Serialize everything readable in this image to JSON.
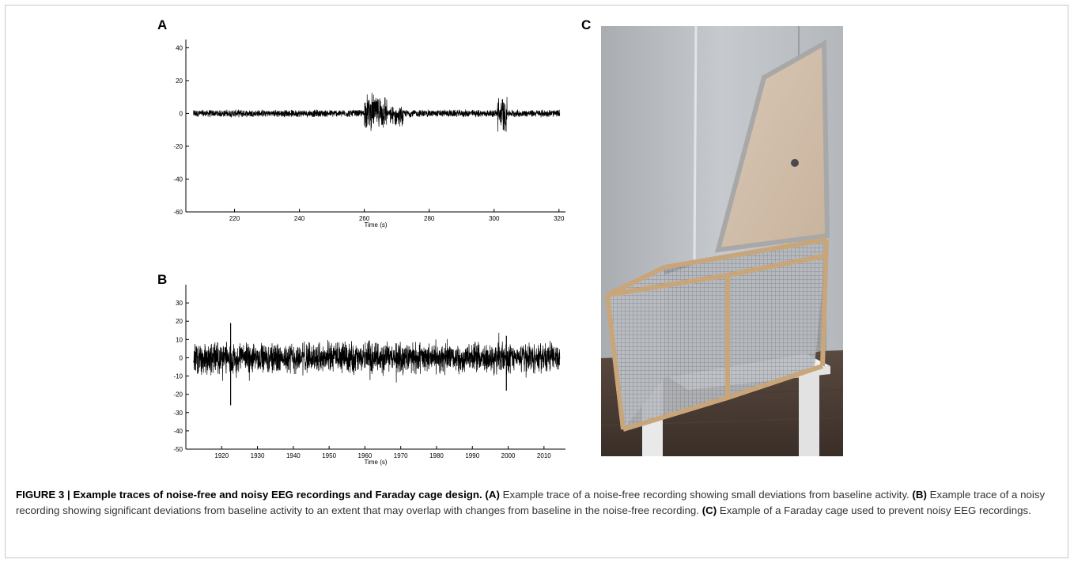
{
  "panels": {
    "a": {
      "letter": "A"
    },
    "b": {
      "letter": "B"
    },
    "c": {
      "letter": "C"
    }
  },
  "chart_data": [
    {
      "panel": "A",
      "type": "line",
      "xlabel": "Time (s)",
      "ylabel": "",
      "xlim": [
        205,
        322
      ],
      "ylim": [
        -60,
        45
      ],
      "xticks": [
        220,
        240,
        260,
        280,
        300,
        320
      ],
      "yticks": [
        40,
        20,
        0,
        -20,
        -40,
        -60
      ],
      "grid": false,
      "description_values": {
        "baseline_amplitude": 2.5,
        "bursts": [
          {
            "start": 260,
            "end": 267,
            "max": 13,
            "min": -11
          },
          {
            "start": 268,
            "end": 272,
            "max": 5,
            "min": -8
          },
          {
            "start": 301,
            "end": 304,
            "max": 12,
            "min": -13
          }
        ]
      }
    },
    {
      "panel": "B",
      "type": "line",
      "xlabel": "Time (s)",
      "ylabel": "",
      "xlim": [
        1910,
        2016
      ],
      "ylim": [
        -50,
        40
      ],
      "xticks": [
        1920,
        1930,
        1940,
        1950,
        1960,
        1970,
        1980,
        1990,
        2000,
        2010
      ],
      "yticks": [
        30,
        20,
        10,
        0,
        -10,
        -20,
        -30,
        -40,
        -50
      ],
      "grid": false,
      "description_values": {
        "baseline_amplitude": 10,
        "spikes": [
          {
            "x": 1922.5,
            "max": 19,
            "min": -26
          },
          {
            "x": 1999.5,
            "max": 12,
            "min": -18
          }
        ]
      }
    }
  ],
  "caption": {
    "figure_label": "FIGURE 3 | ",
    "title": "Example traces of noise-free and noisy EEG recordings and Faraday cage design.",
    "a_label": "(A)",
    "a_text": " Example trace of a noise-free recording showing small deviations from baseline activity. ",
    "b_label": "(B)",
    "b_text": " Example trace of a noisy recording showing significant deviations from baseline activity to an extent that may overlap with changes from baseline in the noise-free recording. ",
    "c_label": "(C)",
    "c_text": " Example of a Faraday cage used to prevent noisy EEG recordings."
  }
}
